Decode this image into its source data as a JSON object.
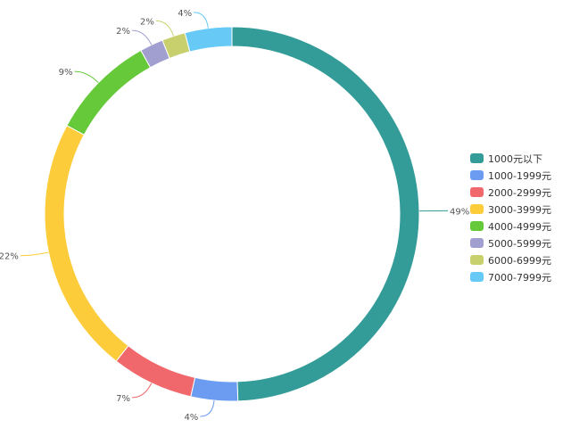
{
  "chart_data": {
    "type": "pie",
    "variant": "donut",
    "title": "",
    "categories": [
      "1000元以下",
      "1000-1999元",
      "2000-2999元",
      "3000-3999元",
      "4000-4999元",
      "5000-5999元",
      "6000-6999元",
      "7000-7999元"
    ],
    "values": [
      49,
      4,
      7,
      22,
      9,
      2,
      2,
      4
    ],
    "value_labels": [
      "49%",
      "4%",
      "7%",
      "22%",
      "9%",
      "2%",
      "2%",
      "4%"
    ],
    "colors": [
      "#339c98",
      "#6b9cf2",
      "#f0686b",
      "#fccc3a",
      "#66c93a",
      "#a09fcf",
      "#c8d06e",
      "#67caf6"
    ],
    "legend_position": "right",
    "start_angle_deg": 0,
    "direction": "clockwise"
  }
}
